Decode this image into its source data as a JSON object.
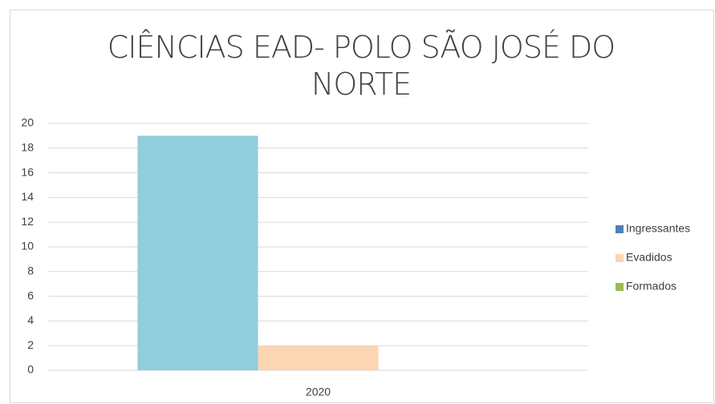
{
  "chart_data": {
    "type": "bar",
    "title": "CIÊNCIAS EAD- POLO SÃO JOSÉ DO NORTE",
    "categories": [
      "2020"
    ],
    "series": [
      {
        "name": "Ingressantes",
        "color": "#92cddc",
        "legend_color": "#4f81bd",
        "values": [
          19
        ]
      },
      {
        "name": "Evadidos",
        "color": "#fcd5b4",
        "legend_color": "#fcd5b4",
        "values": [
          2
        ]
      },
      {
        "name": "Formados",
        "color": "#9bbb59",
        "legend_color": "#9bbb59",
        "values": [
          0
        ]
      }
    ],
    "ylim": [
      0,
      20
    ],
    "yticks": [
      0,
      2,
      4,
      6,
      8,
      10,
      12,
      14,
      16,
      18,
      20
    ],
    "grid": true,
    "legend": "right"
  }
}
